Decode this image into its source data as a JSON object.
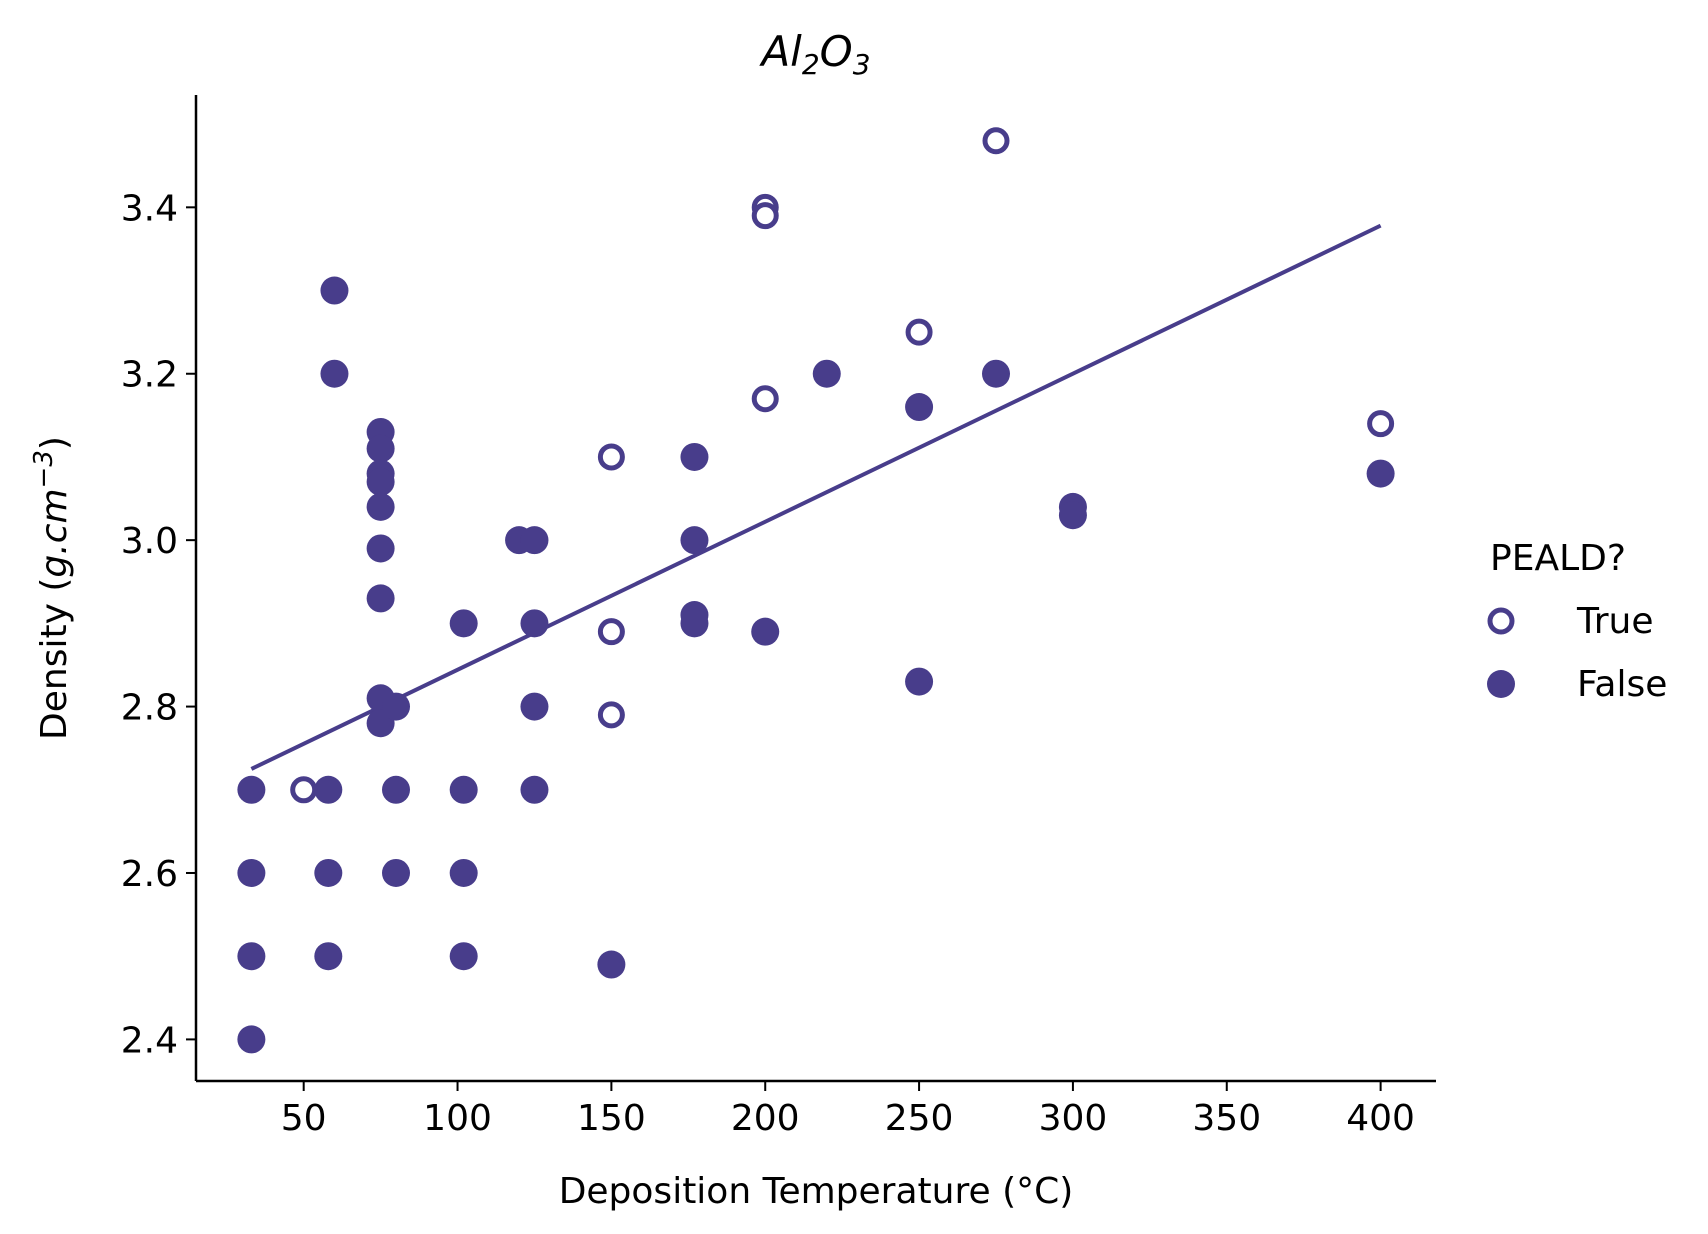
{
  "chart_data": {
    "type": "scatter",
    "title": "Al2O3",
    "title_parts": {
      "base1": "Al",
      "sub1": "2",
      "base2": "O",
      "sub2": "3"
    },
    "xlabel": "Deposition Temperature (°C)",
    "ylabel_parts": {
      "prefix": "Density (",
      "unit_italic": "g.cm",
      "sup": "−3",
      "suffix": ")"
    },
    "xlim": [
      15,
      418
    ],
    "ylim": [
      2.35,
      3.535
    ],
    "x_ticks": [
      50,
      100,
      150,
      200,
      250,
      300,
      350,
      400
    ],
    "y_ticks": [
      "2.4",
      "2.6",
      "2.8",
      "3.0",
      "3.2",
      "3.4"
    ],
    "color": "#483d8b",
    "legend": {
      "title": "PEALD?",
      "placement": "right",
      "entries": [
        "True",
        "False"
      ]
    },
    "series": [
      {
        "name": "True",
        "marker": "hollow",
        "points": [
          [
            50,
            2.7
          ],
          [
            150,
            3.1
          ],
          [
            150,
            2.89
          ],
          [
            150,
            2.79
          ],
          [
            200,
            3.4
          ],
          [
            200,
            3.39
          ],
          [
            200,
            3.17
          ],
          [
            250,
            3.25
          ],
          [
            275,
            3.48
          ],
          [
            400,
            3.14
          ]
        ]
      },
      {
        "name": "False",
        "marker": "filled",
        "points": [
          [
            33,
            2.7
          ],
          [
            33,
            2.6
          ],
          [
            33,
            2.5
          ],
          [
            33,
            2.4
          ],
          [
            58,
            2.7
          ],
          [
            58,
            2.6
          ],
          [
            58,
            2.5
          ],
          [
            60,
            3.3
          ],
          [
            60,
            3.2
          ],
          [
            75,
            3.13
          ],
          [
            75,
            3.11
          ],
          [
            75,
            3.08
          ],
          [
            75,
            3.07
          ],
          [
            75,
            3.04
          ],
          [
            75,
            2.99
          ],
          [
            75,
            2.93
          ],
          [
            75,
            2.81
          ],
          [
            75,
            2.78
          ],
          [
            80,
            2.8
          ],
          [
            80,
            2.7
          ],
          [
            80,
            2.6
          ],
          [
            102,
            2.9
          ],
          [
            102,
            2.7
          ],
          [
            102,
            2.6
          ],
          [
            102,
            2.5
          ],
          [
            120,
            3.0
          ],
          [
            125,
            3.0
          ],
          [
            125,
            2.9
          ],
          [
            125,
            2.8
          ],
          [
            125,
            2.7
          ],
          [
            150,
            2.49
          ],
          [
            177,
            3.1
          ],
          [
            177,
            3.0
          ],
          [
            177,
            2.91
          ],
          [
            177,
            2.9
          ],
          [
            200,
            2.89
          ],
          [
            220,
            3.2
          ],
          [
            250,
            3.16
          ],
          [
            250,
            2.83
          ],
          [
            275,
            3.2
          ],
          [
            300,
            3.04
          ],
          [
            300,
            3.03
          ],
          [
            400,
            3.08
          ]
        ]
      }
    ],
    "fit_line": {
      "x": [
        33,
        400
      ],
      "y": [
        2.725,
        3.378
      ]
    }
  }
}
